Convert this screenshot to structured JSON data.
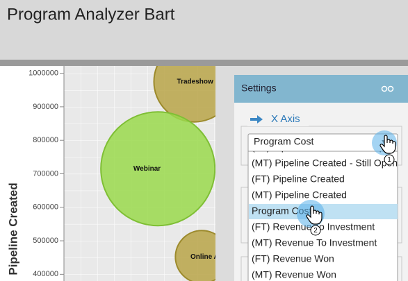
{
  "header": {
    "title": "Program Analyzer Bart"
  },
  "chart_data": {
    "type": "bubble",
    "y_label": "Pipeline Created",
    "ylim": [
      380000,
      1022000
    ],
    "xlim": [
      0,
      100
    ],
    "yticks": [
      1000000,
      900000,
      800000,
      700000,
      600000,
      500000,
      400000
    ],
    "bubbles": [
      {
        "label": "Tradeshow",
        "x": 86,
        "y": 975000,
        "size": 58,
        "color": "#b8a548"
      },
      {
        "label": "Webinar",
        "x": 62,
        "y": 715000,
        "size": 82,
        "color": "#9ad94c"
      },
      {
        "label": "Online Advertising",
        "x": 91,
        "y": 452000,
        "size": 38,
        "color": "#b8a548"
      }
    ]
  },
  "settings": {
    "title": "Settings",
    "section": "X Axis",
    "selected": "Program Cost",
    "highlighted": 4,
    "options": [
      "(FT) Pipeline Created - Still Open",
      "(MT) Pipeline Created - Still Open",
      "(FT) Pipeline Created",
      "(MT) Pipeline Created",
      "Program Cost",
      "(FT) Revenue To Investment",
      "(MT) Revenue To Investment",
      "(FT) Revenue Won",
      "(MT) Revenue Won"
    ],
    "steps": [
      "1",
      "2"
    ]
  }
}
